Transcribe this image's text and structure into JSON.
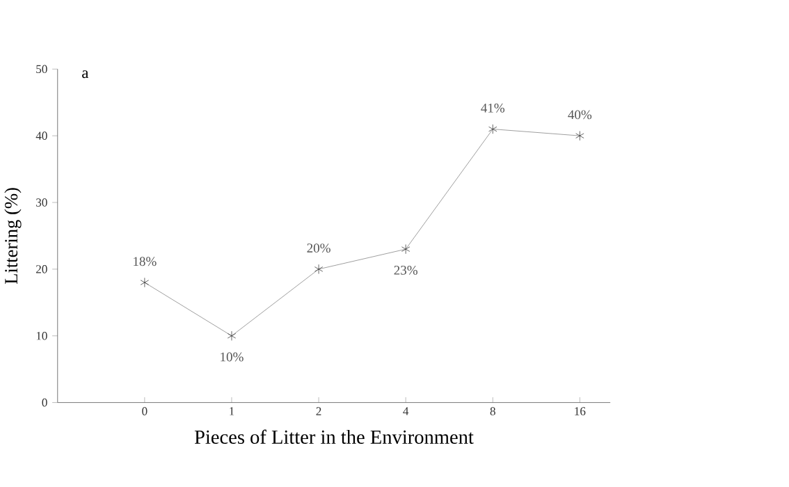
{
  "chart_data": {
    "type": "line",
    "xlabel": "Pieces of Litter in the Environment",
    "ylabel": "Littering (%)",
    "annotations": [
      "a"
    ],
    "categories": [
      "0",
      "1",
      "2",
      "4",
      "8",
      "16"
    ],
    "values": [
      18,
      10,
      20,
      23,
      41,
      40
    ],
    "value_labels": [
      "18%",
      "10%",
      "20%",
      "23%",
      "41%",
      "40%"
    ],
    "color": "#808080",
    "marker": "cross",
    "line_style": "solid",
    "ylim": [
      0,
      50
    ],
    "yticks": [
      0,
      10,
      20,
      30,
      40,
      50
    ],
    "grid": false,
    "legend": false
  }
}
